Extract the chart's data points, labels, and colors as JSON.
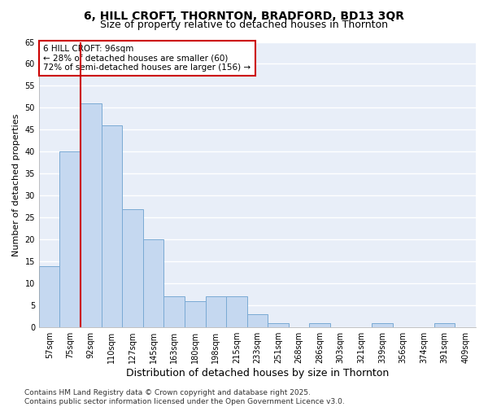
{
  "title1": "6, HILL CROFT, THORNTON, BRADFORD, BD13 3QR",
  "title2": "Size of property relative to detached houses in Thornton",
  "xlabel": "Distribution of detached houses by size in Thornton",
  "ylabel": "Number of detached properties",
  "categories": [
    "57sqm",
    "75sqm",
    "92sqm",
    "110sqm",
    "127sqm",
    "145sqm",
    "163sqm",
    "180sqm",
    "198sqm",
    "215sqm",
    "233sqm",
    "251sqm",
    "268sqm",
    "286sqm",
    "303sqm",
    "321sqm",
    "339sqm",
    "356sqm",
    "374sqm",
    "391sqm",
    "409sqm"
  ],
  "values": [
    14,
    40,
    51,
    46,
    27,
    20,
    7,
    6,
    7,
    7,
    3,
    1,
    0,
    1,
    0,
    0,
    1,
    0,
    0,
    1,
    0
  ],
  "bar_color": "#c5d8f0",
  "bar_edge_color": "#7aaad4",
  "highlight_index": 2,
  "highlight_line_color": "#cc0000",
  "annotation_text": "6 HILL CROFT: 96sqm\n← 28% of detached houses are smaller (60)\n72% of semi-detached houses are larger (156) →",
  "annotation_box_color": "#ffffff",
  "annotation_box_edge": "#cc0000",
  "ylim": [
    0,
    65
  ],
  "yticks": [
    0,
    5,
    10,
    15,
    20,
    25,
    30,
    35,
    40,
    45,
    50,
    55,
    60,
    65
  ],
  "footer": "Contains HM Land Registry data © Crown copyright and database right 2025.\nContains public sector information licensed under the Open Government Licence v3.0.",
  "bg_color": "#ffffff",
  "plot_bg_color": "#e8eef8",
  "title_fontsize": 10,
  "subtitle_fontsize": 9,
  "xlabel_fontsize": 9,
  "ylabel_fontsize": 8,
  "tick_fontsize": 7,
  "footer_fontsize": 6.5,
  "annotation_fontsize": 7.5
}
